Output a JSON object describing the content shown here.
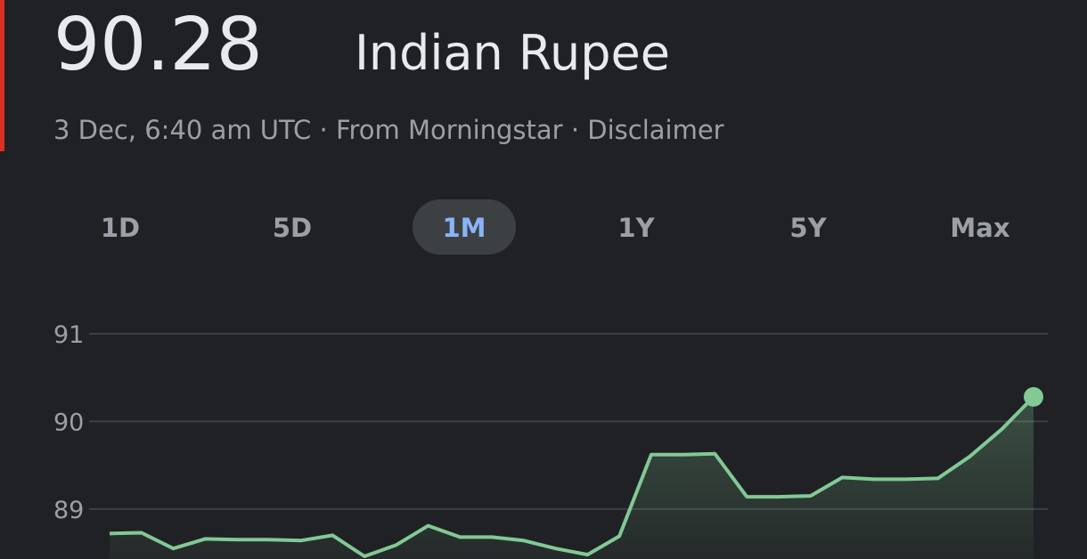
{
  "header": {
    "price": "90.28",
    "currency": "Indian Rupee",
    "meta": [
      "3 Dec, 6:40 am UTC",
      "From Morningstar",
      "Disclaimer"
    ],
    "separator": "·"
  },
  "tabs": [
    "1D",
    "5D",
    "1M",
    "1Y",
    "5Y",
    "Max"
  ],
  "active_tab": "1M",
  "chart_data": {
    "type": "area",
    "color": "#81c995",
    "values": [
      88.72,
      88.73,
      88.55,
      88.66,
      88.65,
      88.65,
      88.64,
      88.7,
      88.46,
      88.59,
      88.81,
      88.68,
      88.68,
      88.64,
      88.55,
      88.48,
      88.69,
      89.62,
      89.62,
      89.63,
      89.14,
      89.14,
      89.15,
      89.36,
      89.34,
      89.34,
      89.35,
      89.6,
      89.91,
      90.28
    ],
    "ylim": [
      88.43,
      91.35
    ],
    "yticks": [
      89,
      90,
      91
    ],
    "grid": true
  }
}
